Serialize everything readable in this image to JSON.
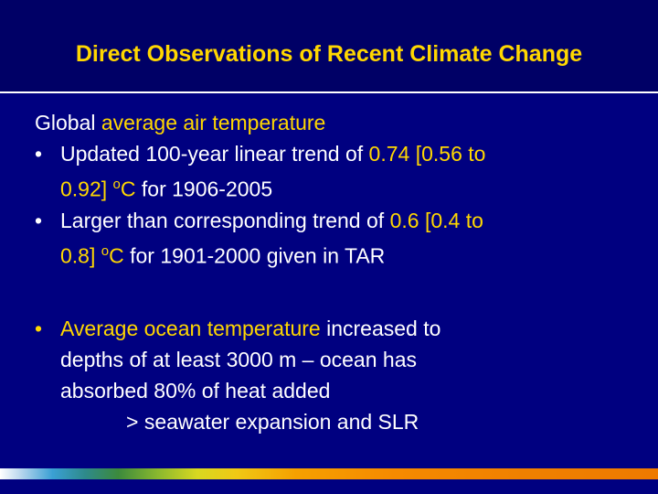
{
  "slide": {
    "title": "Direct Observations of Recent Climate Change",
    "heading": {
      "prefix": "Global ",
      "highlight": "average air temperature"
    },
    "bullet_glyph": "•",
    "bullet1": {
      "t1": "Updated 100-year linear trend of ",
      "t2": "0.74 [0.56 to",
      "t3": "0.92] ",
      "t4": "o",
      "t5": "C",
      "t6": " for 1906-2005"
    },
    "bullet2": {
      "t1": "Larger than corresponding trend of ",
      "t2": "0.6 [0.4 to",
      "t3": "0.8] ",
      "t4": "o",
      "t5": "C",
      "t6": " for 1901-2000 given in TAR"
    },
    "bullet3": {
      "t1": "Average ocean temperature",
      "t2": " increased to",
      "t3": "depths of at least 3000 m – ocean has",
      "t4": "absorbed 80% of heat added"
    },
    "sub_line": "> seawater expansion and SLR"
  },
  "colors": {
    "background": "#000080",
    "title": "#FFD700",
    "highlight": "#FFD700",
    "text": "#FFFFFF"
  }
}
